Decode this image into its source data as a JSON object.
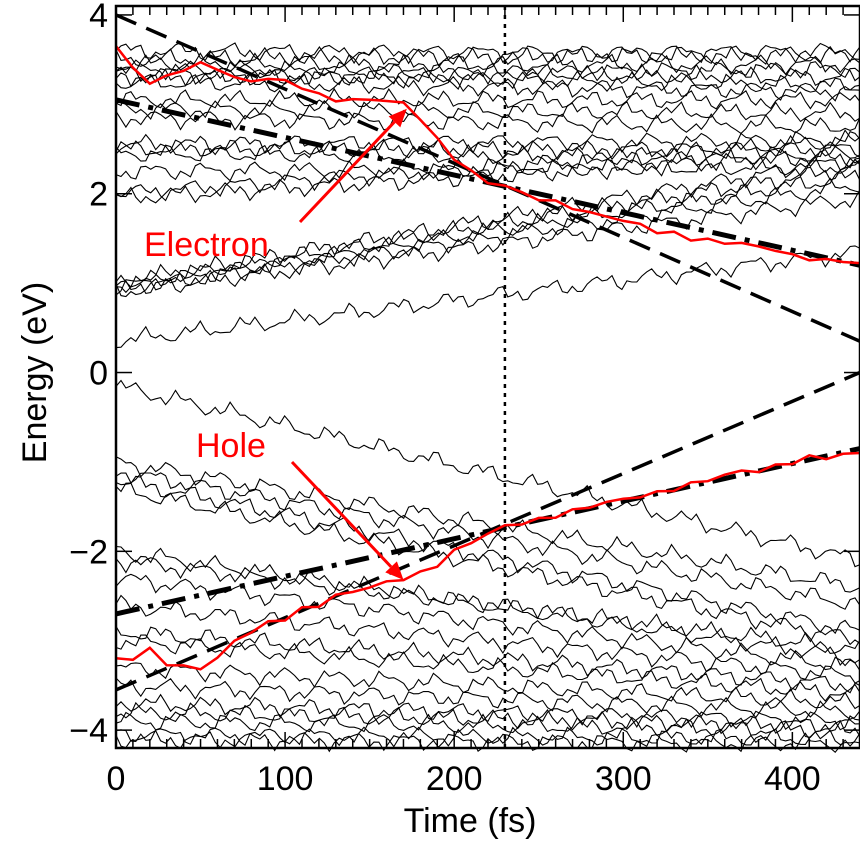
{
  "chart_data": {
    "type": "line",
    "xlabel": "Time (fs)",
    "ylabel": "Energy (eV)",
    "xlim": [
      0,
      440
    ],
    "ylim": [
      -4.2,
      4.1
    ],
    "x_ticks": [
      0,
      100,
      200,
      300,
      400
    ],
    "x_tick_labels": [
      "0",
      "100",
      "200",
      "300",
      "400"
    ],
    "y_ticks": [
      -4,
      -2,
      0,
      2,
      4
    ],
    "y_tick_labels": [
      "−4",
      "−2",
      "0",
      "2",
      "4"
    ],
    "grid": false,
    "legend": "none",
    "colors": {
      "background_levels": "#000000",
      "highlight": "#ff0000",
      "fits": "#000000"
    },
    "series": [
      {
        "name": "Electron",
        "color": "#ff0000",
        "x": [
          0,
          10,
          20,
          30,
          40,
          50,
          60,
          70,
          80,
          90,
          100,
          110,
          120,
          130,
          140,
          150,
          160,
          170,
          180,
          190,
          200,
          210,
          220,
          230,
          240,
          250,
          260,
          270,
          280,
          290,
          300,
          310,
          320,
          330,
          340,
          350,
          360,
          370,
          380,
          390,
          400,
          410,
          420,
          430,
          440
        ],
        "y": [
          3.65,
          3.4,
          3.25,
          3.3,
          3.4,
          3.45,
          3.4,
          3.3,
          3.25,
          3.3,
          3.25,
          3.2,
          3.1,
          3.05,
          3.05,
          3.05,
          3.05,
          3.0,
          2.85,
          2.6,
          2.4,
          2.25,
          2.12,
          2.1,
          2.0,
          1.95,
          1.9,
          1.85,
          1.78,
          1.75,
          1.7,
          1.65,
          1.58,
          1.55,
          1.5,
          1.48,
          1.45,
          1.45,
          1.4,
          1.38,
          1.3,
          1.28,
          1.25,
          1.25,
          1.22
        ]
      },
      {
        "name": "Hole",
        "color": "#ff0000",
        "x": [
          0,
          10,
          20,
          30,
          40,
          50,
          60,
          70,
          80,
          90,
          100,
          110,
          120,
          130,
          140,
          150,
          160,
          170,
          180,
          190,
          200,
          210,
          220,
          230,
          240,
          250,
          260,
          270,
          280,
          290,
          300,
          310,
          320,
          330,
          340,
          350,
          360,
          370,
          380,
          390,
          400,
          410,
          420,
          430,
          440
        ],
        "y": [
          -3.2,
          -3.2,
          -3.1,
          -3.25,
          -3.3,
          -3.3,
          -3.2,
          -3.0,
          -2.9,
          -2.8,
          -2.75,
          -2.65,
          -2.6,
          -2.5,
          -2.45,
          -2.4,
          -2.35,
          -2.3,
          -2.25,
          -2.15,
          -2.0,
          -1.9,
          -1.8,
          -1.72,
          -1.68,
          -1.65,
          -1.6,
          -1.55,
          -1.5,
          -1.45,
          -1.42,
          -1.38,
          -1.35,
          -1.3,
          -1.25,
          -1.2,
          -1.15,
          -1.1,
          -1.1,
          -1.05,
          -1.0,
          -0.95,
          -0.95,
          -0.92,
          -0.9
        ]
      }
    ],
    "reference_lines": [
      {
        "style": "dashed",
        "x": [
          0,
          440
        ],
        "y": [
          4.0,
          0.35
        ]
      },
      {
        "style": "dash-dot",
        "x": [
          0,
          440
        ],
        "y": [
          3.05,
          1.2
        ]
      },
      {
        "style": "dashed",
        "x": [
          0,
          440
        ],
        "y": [
          -3.55,
          0.0
        ]
      },
      {
        "style": "dash-dot",
        "x": [
          0,
          440
        ],
        "y": [
          -2.7,
          -0.85
        ]
      },
      {
        "style": "dotted",
        "x": [
          230,
          230
        ],
        "y": [
          -4.2,
          4.1
        ]
      }
    ],
    "background_levels": [
      {
        "start": 3.6,
        "end": 3.55
      },
      {
        "start": 3.5,
        "end": 3.6
      },
      {
        "start": 3.45,
        "end": 3.45
      },
      {
        "start": 3.4,
        "end": 3.3
      },
      {
        "start": 3.35,
        "end": 3.2
      },
      {
        "start": 3.3,
        "end": 3.4
      },
      {
        "start": 3.25,
        "end": 3.15
      },
      {
        "start": 3.05,
        "end": 3.05
      },
      {
        "start": 2.95,
        "end": 2.9
      },
      {
        "start": 2.85,
        "end": 2.75
      },
      {
        "start": 2.55,
        "end": 2.6
      },
      {
        "start": 2.5,
        "end": 2.5
      },
      {
        "start": 2.45,
        "end": 2.4
      },
      {
        "start": 2.25,
        "end": 2.3
      },
      {
        "start": 2.0,
        "end": 2.6
      },
      {
        "start": 1.95,
        "end": 2.45
      },
      {
        "start": 1.0,
        "end": 2.4
      },
      {
        "start": 0.98,
        "end": 2.3
      },
      {
        "start": 0.95,
        "end": 2.2
      },
      {
        "start": 0.93,
        "end": 2.1
      },
      {
        "start": 0.9,
        "end": 1.95
      },
      {
        "start": 0.35,
        "end": 1.35
      },
      {
        "start": -0.15,
        "end": -2.1
      },
      {
        "start": -1.0,
        "end": -2.4
      },
      {
        "start": -1.1,
        "end": -2.6
      },
      {
        "start": -1.2,
        "end": -2.9
      },
      {
        "start": -1.3,
        "end": -3.0
      },
      {
        "start": -2.0,
        "end": -3.2
      },
      {
        "start": -2.1,
        "end": -3.1
      },
      {
        "start": -2.3,
        "end": -3.3
      },
      {
        "start": -2.6,
        "end": -3.4
      },
      {
        "start": -2.9,
        "end": -3.5
      },
      {
        "start": -3.0,
        "end": -3.6
      },
      {
        "start": -3.3,
        "end": -3.7
      },
      {
        "start": -3.5,
        "end": -3.8
      },
      {
        "start": -3.7,
        "end": -3.9
      },
      {
        "start": -3.8,
        "end": -3.95
      },
      {
        "start": -3.9,
        "end": -4.0
      },
      {
        "start": -4.05,
        "end": -4.1
      },
      {
        "start": -4.1,
        "end": -4.15
      }
    ],
    "annotations": [
      {
        "text": "Electron",
        "color": "#ff0000",
        "arrow_to": {
          "x": 172,
          "y": 2.95
        }
      },
      {
        "text": "Hole",
        "color": "#ff0000",
        "arrow_to": {
          "x": 170,
          "y": -2.32
        }
      }
    ]
  }
}
